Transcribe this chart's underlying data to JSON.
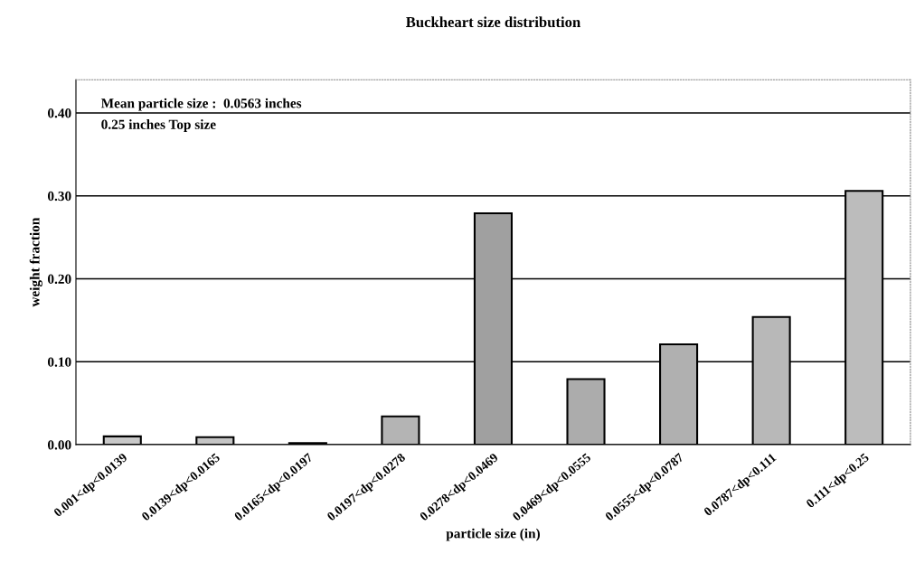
{
  "chart_data": {
    "type": "bar",
    "title": "Buckheart size distribution",
    "xlabel": "particle size (in)",
    "ylabel": "weight fraction",
    "categories": [
      "0.001<dp<0.0139",
      "0.0139<dp<0.0165",
      "0.0165<dp<0.0197",
      "0.0197<dp<0.0278",
      "0.0278<dp<0.0469",
      "0.0469<dp<0.0555",
      "0.0555<dp<0.0787",
      "0.0787<dp<0.111",
      "0.111<dp<0.25"
    ],
    "values": [
      0.01,
      0.009,
      0.002,
      0.034,
      0.279,
      0.079,
      0.121,
      0.154,
      0.306
    ],
    "colors": [
      "#c8c8c8",
      "#c4c4c4",
      "#b0b0b0",
      "#b4b4b4",
      "#a0a0a0",
      "#acacac",
      "#b0b0b0",
      "#b8b8b8",
      "#bcbcbc"
    ],
    "ylim": [
      0,
      0.44
    ],
    "yticks": [
      {
        "value": 0,
        "label": "0.00"
      },
      {
        "value": 0.1,
        "label": "0.10"
      },
      {
        "value": 0.2,
        "label": "0.20"
      },
      {
        "value": 0.3,
        "label": "0.30"
      },
      {
        "value": 0.4,
        "label": "0.40"
      }
    ],
    "grid": "y",
    "annotations": [
      "Mean particle size :  0.0563 inches",
      "0.25 inches Top size"
    ]
  }
}
